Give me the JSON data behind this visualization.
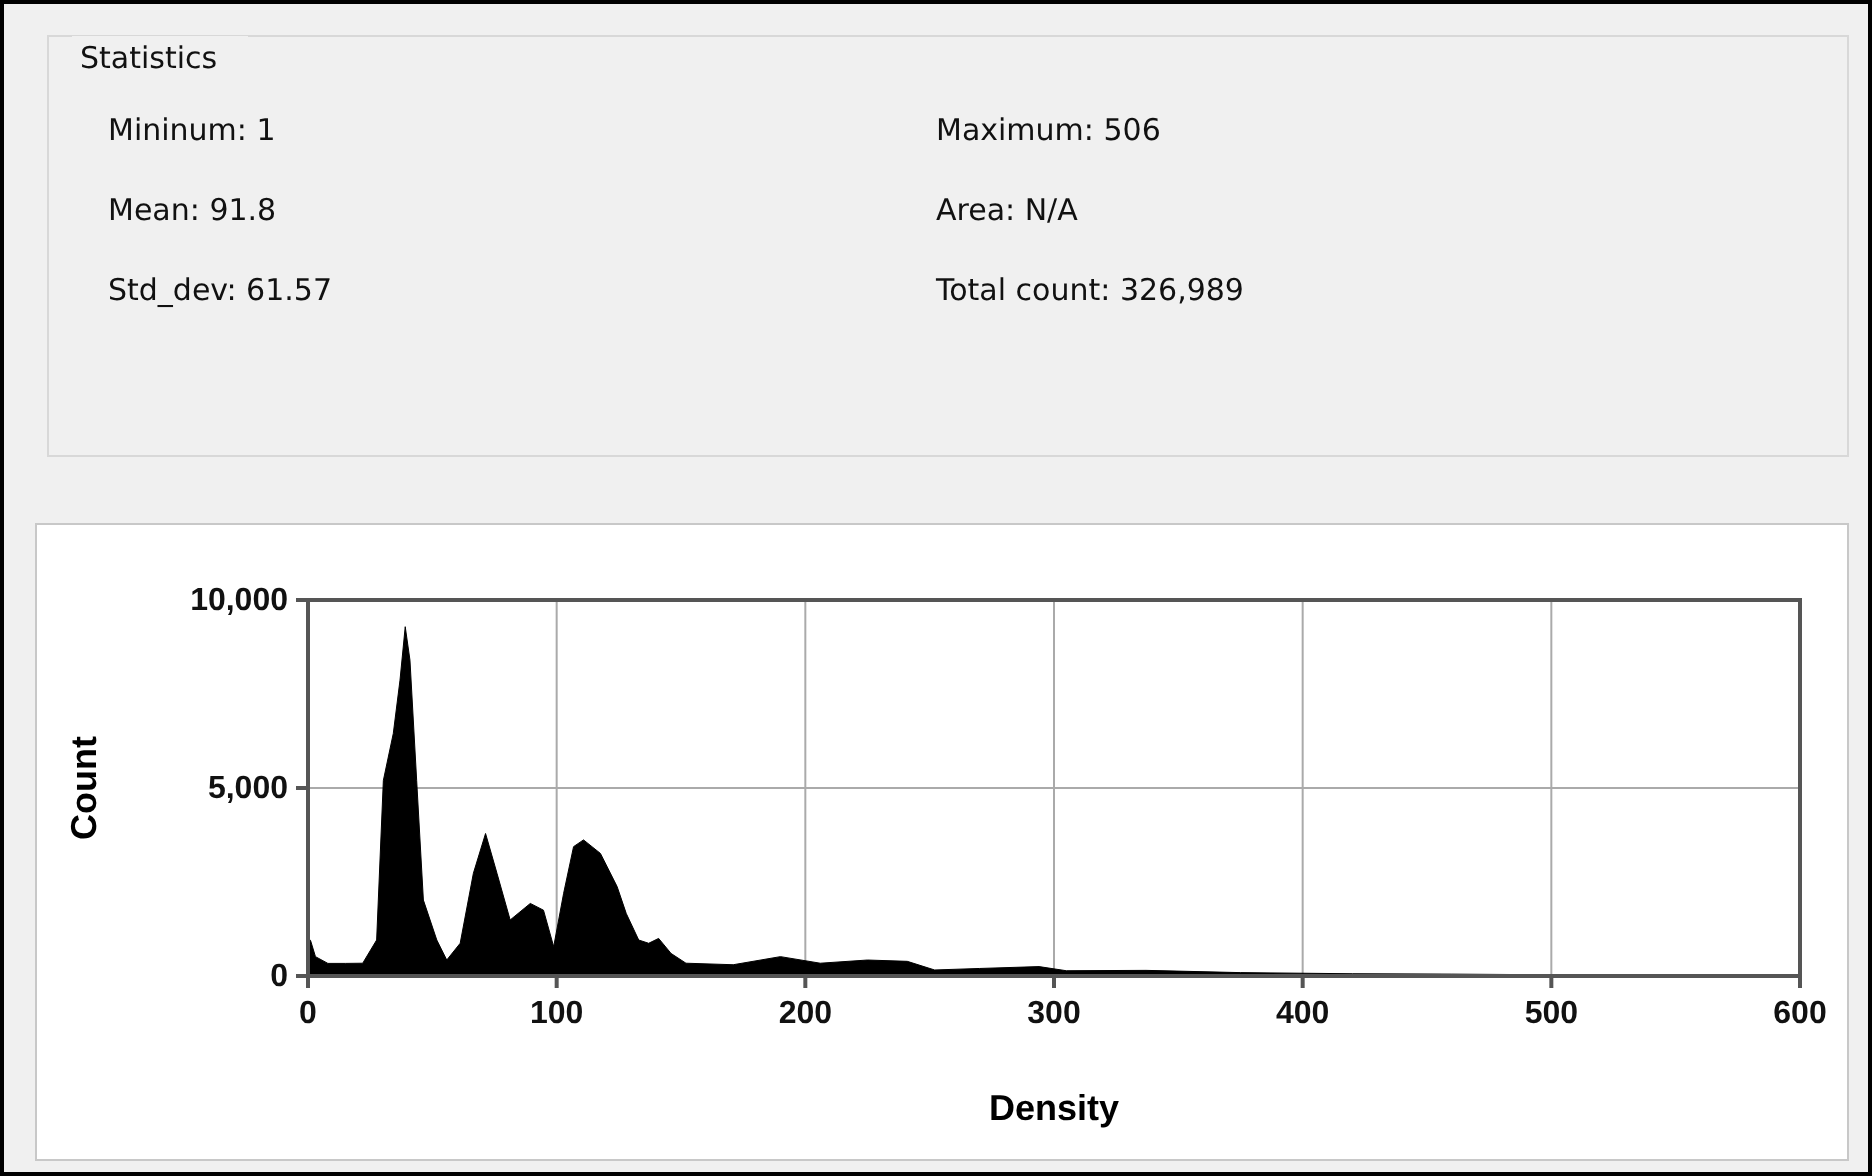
{
  "chart_data": {
    "type": "area",
    "xlabel": "Density",
    "ylabel": "Count",
    "annotations": [
      "Statistics",
      "Mininum: 1",
      "Maximum: 506",
      "Mean: 91.8",
      "Area: N/A",
      "Std_dev: 61.57",
      "Total count: 326,989"
    ],
    "x": [
      0,
      1,
      3,
      8,
      15,
      22,
      27.6,
      30.3,
      34.3,
      37,
      39.1,
      41,
      43.7,
      46.4,
      51.8,
      55.8,
      61.2,
      66.5,
      71.4,
      76,
      81.3,
      89.4,
      94.7,
      98.8,
      102.8,
      106.8,
      110.8,
      117.6,
      124.3,
      128,
      133,
      137,
      141,
      146,
      152,
      171,
      190,
      206,
      225,
      241,
      252,
      270,
      294,
      305,
      337,
      375,
      420,
      460,
      506,
      510
    ],
    "series": [
      {
        "color": "#000000",
        "values": [
          900,
          950,
          515,
          335,
          335,
          340,
          957,
          5200,
          6450,
          7870,
          9290,
          8400,
          5200,
          2020,
          957,
          425,
          870,
          2730,
          3790,
          2730,
          1490,
          1930,
          1750,
          780,
          2200,
          3440,
          3620,
          3260,
          2380,
          1660,
          957,
          870,
          1000,
          600,
          340,
          300,
          515,
          340,
          425,
          390,
          160,
          200,
          250,
          140,
          150,
          90,
          60,
          50,
          30,
          0
        ]
      }
    ],
    "xlim": [
      0,
      600
    ],
    "xticks": [
      0,
      100,
      200,
      300,
      400,
      500,
      600
    ],
    "ylim": [
      0,
      10000
    ],
    "yticks": [
      0,
      {
        "value": 5000,
        "label": "5,000"
      },
      {
        "value": 10000,
        "label": "10,000"
      }
    ],
    "grid": true
  }
}
